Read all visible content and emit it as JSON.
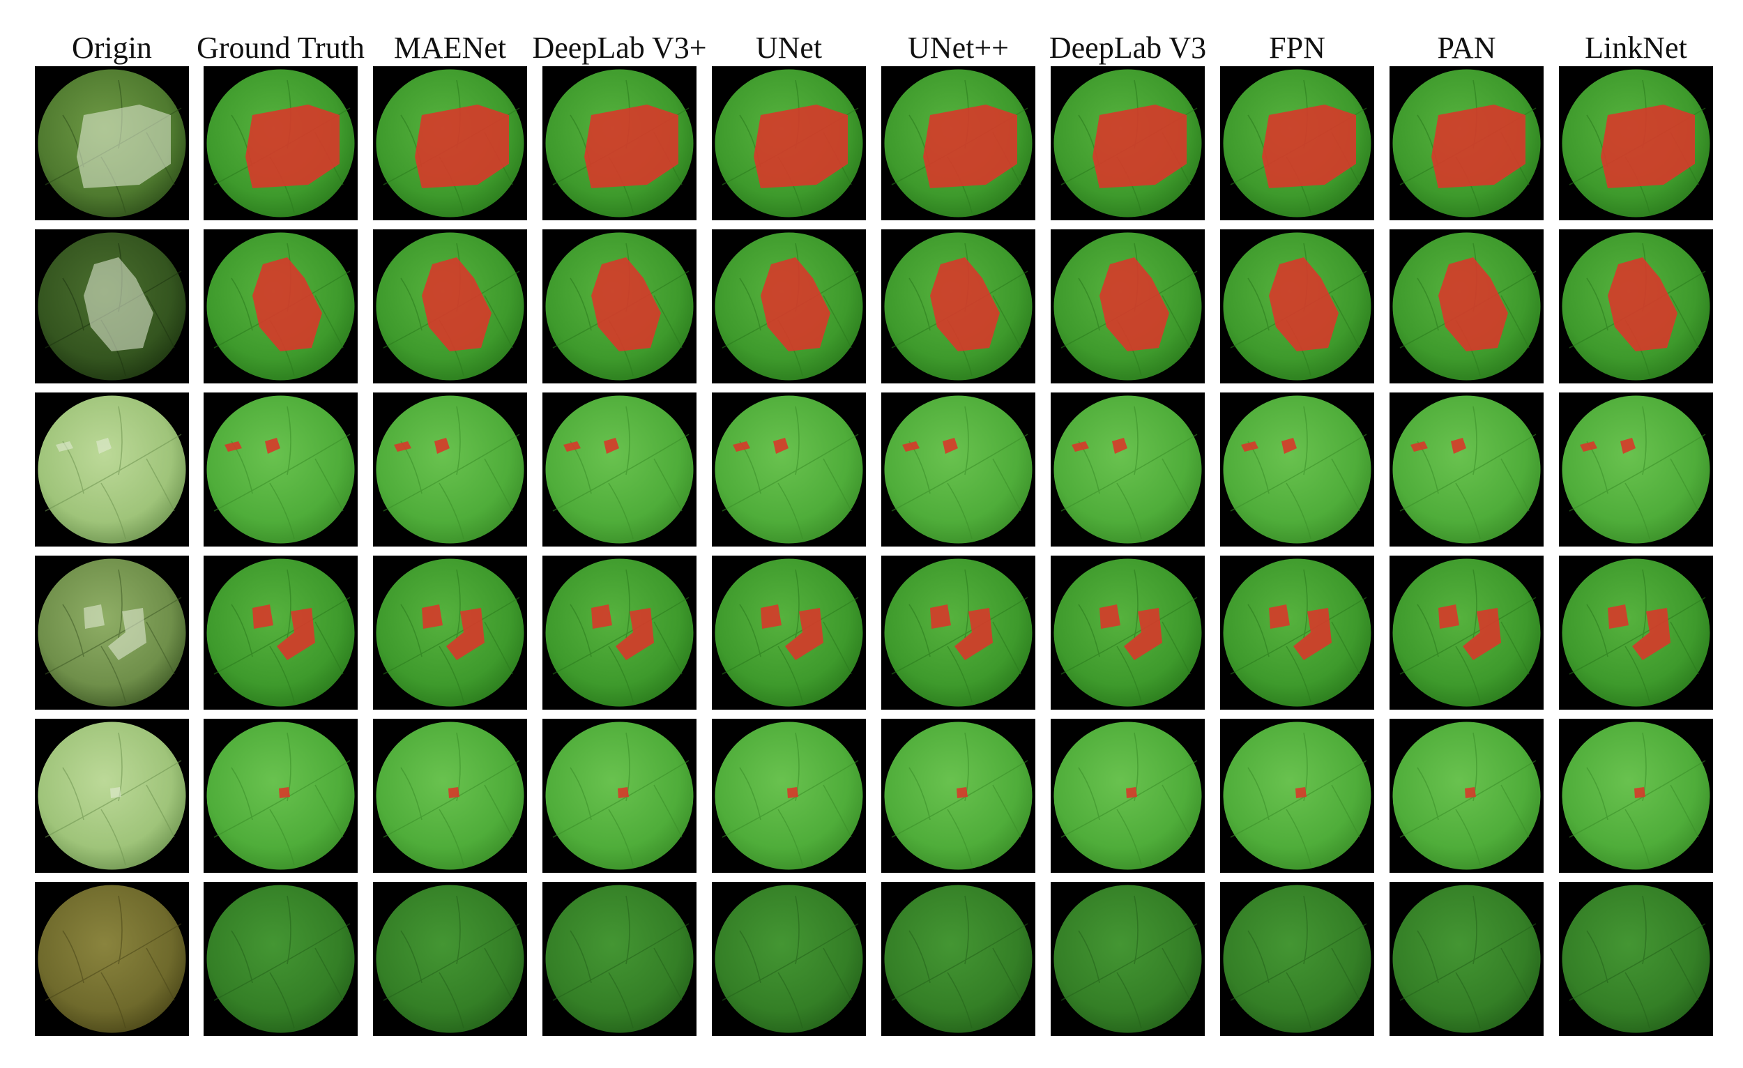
{
  "figure": {
    "columns": [
      {
        "label": "Origin",
        "kind": "origin"
      },
      {
        "label": "Ground Truth",
        "kind": "mask"
      },
      {
        "label": "MAENet",
        "kind": "mask"
      },
      {
        "label": "DeepLab V3+",
        "kind": "mask"
      },
      {
        "label": "UNet",
        "kind": "mask"
      },
      {
        "label": "UNet++",
        "kind": "mask"
      },
      {
        "label": "DeepLab V3",
        "kind": "mask"
      },
      {
        "label": "FPN",
        "kind": "mask"
      },
      {
        "label": "PAN",
        "kind": "mask"
      },
      {
        "label": "LinkNet",
        "kind": "mask"
      }
    ],
    "rows": [
      {
        "leaf_tone": "dark-green",
        "lesion": "large single region",
        "mask_tone": "bright-green"
      },
      {
        "leaf_tone": "very-dark-green",
        "lesion": "large single region",
        "mask_tone": "bright-green"
      },
      {
        "leaf_tone": "pale-green",
        "lesion": "two small spots",
        "mask_tone": "light-green"
      },
      {
        "leaf_tone": "mottled-green",
        "lesion": "two medium regions",
        "mask_tone": "bright-green"
      },
      {
        "leaf_tone": "pale-green",
        "lesion": "one tiny spot",
        "mask_tone": "light-green"
      },
      {
        "leaf_tone": "olive-brown",
        "lesion": "none",
        "mask_tone": "dark-green"
      }
    ],
    "colors": {
      "background": "#000000",
      "lesion_mask": "#d63a2a",
      "header_text": "#111111"
    }
  }
}
